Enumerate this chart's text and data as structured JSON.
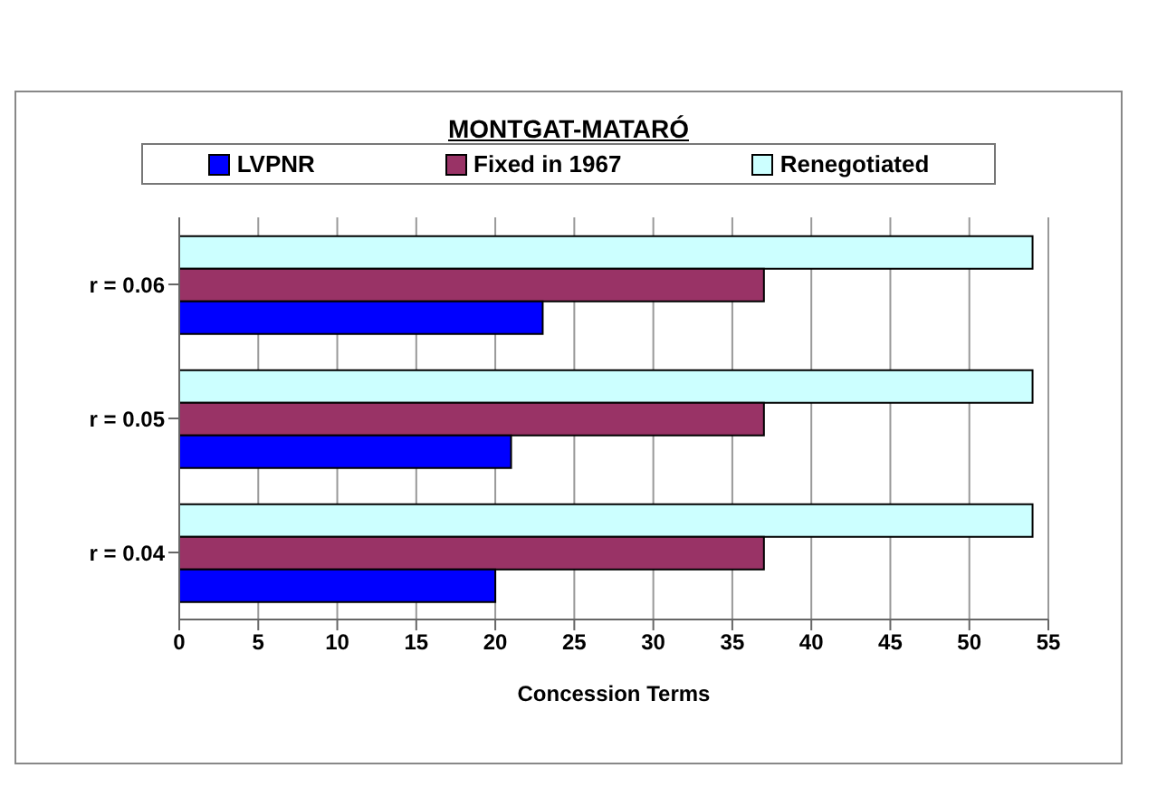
{
  "chart_data": {
    "type": "bar",
    "orientation": "horizontal",
    "title": "MONTGAT-MATARÓ",
    "xlabel": "Concession Terms",
    "categories": [
      "r = 0.06",
      "r = 0.05",
      "r = 0.04"
    ],
    "series": [
      {
        "name": "LVPNR",
        "color": "#0000ff",
        "values": [
          23,
          21,
          20
        ]
      },
      {
        "name": "Fixed in 1967",
        "color": "#993366",
        "values": [
          37,
          37,
          37
        ]
      },
      {
        "name": "Renegotiated",
        "color": "#ccffff",
        "values": [
          54,
          54,
          54
        ]
      }
    ],
    "xlim": [
      0,
      55
    ],
    "xticks": [
      0,
      5,
      10,
      15,
      20,
      25,
      30,
      35,
      40,
      45,
      50,
      55
    ],
    "grid": "x",
    "legend": "top"
  }
}
